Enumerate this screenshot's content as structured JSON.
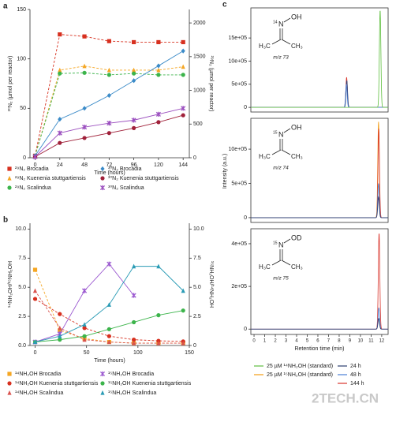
{
  "watermark": "2TECH.CN",
  "chart_data": [
    {
      "type": "line",
      "panel_label": "a",
      "xlabel": "Time (hours)",
      "ylabel": "³⁰N₂ (µmol per reactor)",
      "y2label": "²⁹N₂ (µmol per reactor)",
      "x": [
        0,
        24,
        48,
        72,
        96,
        120,
        144
      ],
      "xlim": [
        -5,
        150
      ],
      "xticks": [
        0,
        24,
        48,
        72,
        96,
        120,
        144
      ],
      "ylim": [
        0,
        150
      ],
      "yticks": [
        0,
        50,
        100,
        150
      ],
      "y2lim": [
        0,
        2200
      ],
      "y2ticks": [
        0,
        500,
        1000,
        1500,
        2000
      ],
      "series": [
        {
          "name": "²⁹N₂ Brocadia",
          "color": "#d7301f",
          "marker": "square",
          "dashed": true,
          "axis": "y2",
          "values": [
            30,
            1830,
            1800,
            1730,
            1715,
            1715,
            1715
          ]
        },
        {
          "name": "²⁹N₂ Kuenenia stuttgartiensis",
          "color": "#f5a623",
          "marker": "triangle",
          "dashed": true,
          "axis": "y2",
          "values": [
            30,
            1300,
            1360,
            1300,
            1300,
            1300,
            1350
          ]
        },
        {
          "name": "²⁹N₂ Scalindua",
          "color": "#3cb44b",
          "marker": "circle",
          "dashed": true,
          "axis": "y2",
          "values": [
            30,
            1250,
            1260,
            1230,
            1250,
            1230,
            1230
          ]
        },
        {
          "name": "³⁰N₂ Brocadia",
          "color": "#3b8bc8",
          "marker": "diamond",
          "dashed": false,
          "values": [
            2,
            39,
            50,
            63,
            78,
            93,
            108
          ]
        },
        {
          "name": "³⁰N₂ Kuenenia stuttgartiensis",
          "color": "#a0213a",
          "marker": "circle",
          "dashed": false,
          "values": [
            1,
            15,
            20,
            25,
            30,
            36,
            43
          ]
        },
        {
          "name": "³⁰N₂ Scalindua",
          "color": "#9b4fbf",
          "marker": "cross",
          "dashed": false,
          "values": [
            1,
            25,
            31,
            35,
            38,
            44,
            50
          ]
        }
      ]
    },
    {
      "type": "line",
      "panel_label": "b",
      "xlabel": "Time (hours)",
      "ylabel": "¹⁴NH₂OH/¹⁵NH₂OH",
      "y2label": "¹⁵NH₂OH/¹⁴NH₂OH",
      "x": [
        0,
        24,
        48,
        72,
        96,
        120,
        144
      ],
      "xlim": [
        -5,
        150
      ],
      "xticks": [
        0,
        50,
        100,
        150
      ],
      "ylim": [
        0,
        10.5
      ],
      "yticks": [
        {
          "value": 0,
          "label": "0.0"
        },
        2.5,
        {
          "value": 5,
          "label": "5.0"
        },
        7.5,
        {
          "value": 10,
          "label": "10.0"
        }
      ],
      "y2lim": [
        0,
        10.5
      ],
      "y2ticks": [
        0,
        2.5,
        {
          "value": 5,
          "label": "5.0"
        },
        7.5,
        {
          "value": 10,
          "label": "10.0"
        }
      ],
      "series": [
        {
          "name": "¹⁴NH₂OH Brocadia",
          "color": "#f5a623",
          "marker": "square",
          "dashed": true,
          "values": [
            6.5,
            1.3,
            0.6,
            0.3,
            0.2,
            0.2,
            0.2
          ]
        },
        {
          "name": "¹⁴NH₂OH Kuenenia stuttgartiensis",
          "color": "#d7301f",
          "marker": "circle",
          "dashed": true,
          "values": [
            4.0,
            2.7,
            1.5,
            0.8,
            0.5,
            0.4,
            0.35
          ]
        },
        {
          "name": "¹⁴NH₂OH Scalindua",
          "color": "#d9534f",
          "marker": "triangle",
          "dashed": true,
          "values": [
            4.7,
            1.5,
            0.5,
            0.3,
            0.2,
            0.2,
            0.2
          ]
        },
        {
          "name": "¹⁵NH₂OH Brocadia",
          "color": "#9b59d0",
          "marker": "cross",
          "dashed": false,
          "axis": "y2",
          "values": [
            0.3,
            1.0,
            4.7,
            7.0,
            4.3,
            null,
            null
          ]
        },
        {
          "name": "¹⁵NH₂OH Kuenenia stuttgartiensis",
          "color": "#3cb44b",
          "marker": "circle",
          "dashed": false,
          "axis": "y2",
          "values": [
            0.3,
            0.5,
            0.8,
            1.4,
            2.0,
            2.6,
            3.0
          ]
        },
        {
          "name": "¹⁵NH₂OH Scalindua",
          "color": "#2a9bb5",
          "marker": "triangle",
          "dashed": false,
          "axis": "y2",
          "values": [
            0.3,
            0.8,
            1.8,
            3.5,
            6.8,
            6.8,
            4.7
          ]
        }
      ]
    },
    {
      "type": "chromatogram",
      "panel_label": "c",
      "xlabel": "Retention time (min)",
      "ylabel": "Intensity (a.u.)",
      "xlim": [
        -0.3,
        12.6
      ],
      "xticks": [
        0,
        1,
        2,
        3,
        4,
        5,
        6,
        7,
        8,
        9,
        10,
        11,
        12
      ],
      "legend": [
        {
          "name": "25 µM ¹⁴NH₂OH (standard)",
          "color": "#5fbf3f"
        },
        {
          "name": "25 µM ¹⁵NH₂OH (standard)",
          "color": "#f39c12"
        },
        {
          "name": "24 h",
          "color": "#2c3e70"
        },
        {
          "name": "48 h",
          "color": "#4a7fd4"
        },
        {
          "name": "144 h",
          "color": "#d9342b"
        }
      ],
      "panels": [
        {
          "ylim": [
            -100000,
            2150000
          ],
          "yticks": [
            0,
            {
              "value": 500000,
              "label": "5e+05"
            },
            {
              "value": 1000000,
              "label": "10e+05"
            },
            {
              "value": 1500000,
              "label": "15e+05"
            }
          ],
          "structure": {
            "isotope": "14",
            "atom": "N",
            "group": "OH",
            "left": "H₃C",
            "right": "CH₃",
            "mz": "m/z 73"
          },
          "peaks": [
            {
              "color": "#d9342b",
              "x": 8.7,
              "height": 650000
            },
            {
              "color": "#2c3e70",
              "x": 8.72,
              "height": 580000
            },
            {
              "color": "#4a7fd4",
              "x": 8.68,
              "height": 500000
            },
            {
              "color": "#5fbf3f",
              "x": 11.85,
              "height": 2100000
            }
          ]
        },
        {
          "ylim": [
            -70000,
            1450000
          ],
          "yticks": [
            0,
            {
              "value": 500000,
              "label": "5e+05"
            },
            {
              "value": 1000000,
              "label": "10e+05"
            }
          ],
          "structure": {
            "isotope": "15",
            "atom": "N",
            "group": "OH",
            "left": "H₃C",
            "right": "CH₃",
            "mz": "m/z 74"
          },
          "peaks": [
            {
              "color": "#f39c12",
              "x": 11.7,
              "height": 1400000
            },
            {
              "color": "#d9342b",
              "x": 11.72,
              "height": 1300000
            },
            {
              "color": "#4a7fd4",
              "x": 11.7,
              "height": 500000
            },
            {
              "color": "#2c3e70",
              "x": 11.7,
              "height": 300000
            }
          ]
        },
        {
          "ylim": [
            -25000,
            470000
          ],
          "yticks": [
            0,
            {
              "value": 200000,
              "label": "2e+05"
            },
            {
              "value": 400000,
              "label": "4e+05"
            }
          ],
          "structure": {
            "isotope": "15",
            "atom": "N",
            "group": "OD",
            "left": "H₃C",
            "right": "CH₃",
            "mz": "m/z 75"
          },
          "peaks": [
            {
              "color": "#d9342b",
              "x": 11.75,
              "height": 450000
            },
            {
              "color": "#4a7fd4",
              "x": 11.73,
              "height": 100000
            },
            {
              "color": "#2c3e70",
              "x": 11.72,
              "height": 50000
            }
          ]
        }
      ]
    }
  ]
}
